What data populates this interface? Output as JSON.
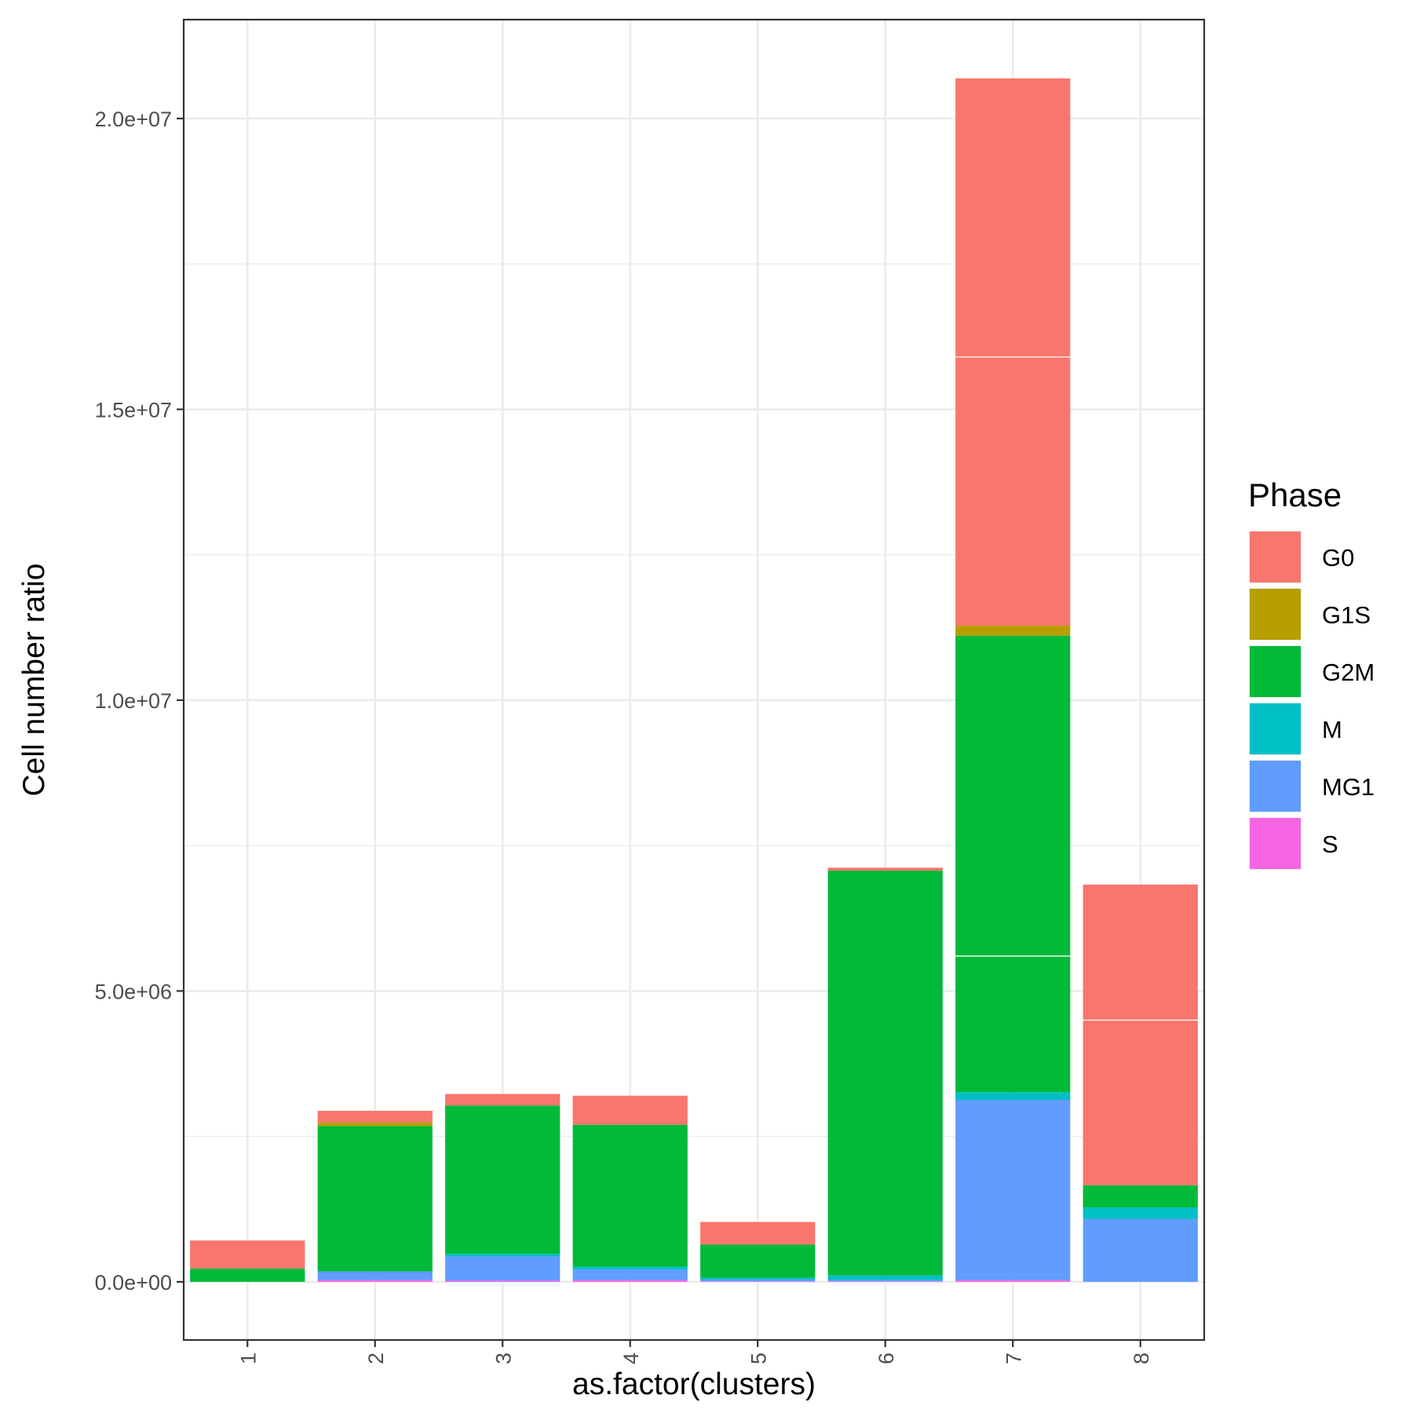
{
  "chart_data": {
    "type": "bar",
    "stacked": true,
    "xlabel": "as.factor(clusters)",
    "ylabel": "Cell number ratio",
    "ylim": [
      -1000000,
      21700000
    ],
    "y_ticks": [
      0,
      5000000,
      10000000,
      15000000,
      20000000
    ],
    "y_tick_labels": [
      "0.0e+00",
      "5.0e+06",
      "1.0e+07",
      "1.5e+07",
      "2.0e+07"
    ],
    "categories": [
      "1",
      "2",
      "3",
      "4",
      "5",
      "6",
      "7",
      "8"
    ],
    "legend_title": "Phase",
    "legend_position": "right",
    "grid": true,
    "series": [
      {
        "name": "S",
        "color": "#F564E3",
        "values": [
          0,
          30000,
          20000,
          30000,
          10000,
          10000,
          30000,
          0
        ]
      },
      {
        "name": "MG1",
        "color": "#619CFF",
        "values": [
          0,
          150000,
          420000,
          180000,
          30000,
          20000,
          3100000,
          1080000
        ]
      },
      {
        "name": "M",
        "color": "#00BFC4",
        "values": [
          0,
          0,
          40000,
          50000,
          30000,
          80000,
          130000,
          200000
        ]
      },
      {
        "name": "G2M",
        "color": "#00BA38",
        "values": [
          230000,
          2500000,
          2550000,
          2440000,
          570000,
          6960000,
          7850000,
          380000
        ]
      },
      {
        "name": "G1S",
        "color": "#B79F00",
        "values": [
          0,
          60000,
          0,
          0,
          0,
          0,
          170000,
          0
        ]
      },
      {
        "name": "G0",
        "color": "#F8766D",
        "values": [
          480000,
          200000,
          200000,
          500000,
          390000,
          50000,
          9410000,
          5170000
        ]
      }
    ],
    "segment_borders": [
      {
        "category": "7",
        "series": "G0",
        "at_values": [
          15900000
        ]
      },
      {
        "category": "7",
        "series": "G2M",
        "at_values": [
          5600000
        ]
      },
      {
        "category": "8",
        "series": "G0",
        "at_values": [
          4500000
        ]
      }
    ],
    "legend_order": [
      "G0",
      "G1S",
      "G2M",
      "M",
      "MG1",
      "S"
    ]
  }
}
